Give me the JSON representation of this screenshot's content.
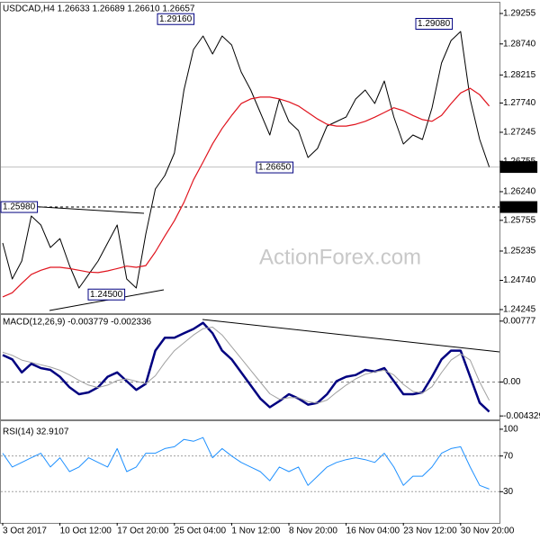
{
  "chart_data": [
    {
      "type": "line",
      "title": "USDCAD,H4 1.26633 1.26689 1.26610 1.26657",
      "watermark": "ActionForex.com",
      "ylim": [
        1.24184,
        1.29407
      ],
      "yticks": [
        1.29255,
        {
          "value": 1.2874,
          "label": "1.28740"
        },
        1.28215,
        {
          "value": 1.2774,
          "label": "1.27740"
        },
        1.27245,
        1.26755,
        {
          "value": 1.2624,
          "label": "1.26240"
        },
        1.25755,
        1.25235,
        {
          "value": 1.2474,
          "label": "1.24740"
        },
        1.24245
      ],
      "series": [
        {
          "color": "#000000",
          "width": 1,
          "values": [
            1.25371,
            1.24762,
            1.25067,
            1.25828,
            1.25676,
            1.25295,
            1.25447,
            1.24991,
            1.2461,
            1.24838,
            1.25067,
            1.25371,
            1.25676,
            1.24762,
            1.2461,
            1.25524,
            1.26285,
            1.26514,
            1.26894,
            1.2796,
            1.28646,
            1.28874,
            1.2857,
            1.28874,
            1.28722,
            1.28265,
            1.2796,
            1.2758,
            1.27199,
            1.27808,
            1.27427,
            1.27275,
            1.26818,
            1.2697,
            1.27351,
            1.27427,
            1.27504,
            1.27808,
            1.2796,
            1.27732,
            1.28113,
            1.27504,
            1.27047,
            1.27199,
            1.27123,
            1.27656,
            1.28417,
            1.28798,
            1.2895,
            1.27808,
            1.27123,
            1.26657
          ]
        },
        {
          "color": "#e0141e",
          "width": 1.2,
          "values": [
            1.2446,
            1.2453,
            1.2469,
            1.2484,
            1.2491,
            1.2496,
            1.2496,
            1.2494,
            1.2491,
            1.2488,
            1.2487,
            1.249,
            1.2494,
            1.2498,
            1.2496,
            1.2499,
            1.2522,
            1.2549,
            1.2575,
            1.2606,
            1.2644,
            1.2674,
            1.2705,
            1.2731,
            1.2753,
            1.2773,
            1.2781,
            1.2784,
            1.2784,
            1.2781,
            1.2776,
            1.2769,
            1.2758,
            1.2747,
            1.2738,
            1.2735,
            1.2735,
            1.2738,
            1.2743,
            1.275,
            1.2758,
            1.2766,
            1.2761,
            1.2753,
            1.2746,
            1.2743,
            1.2753,
            1.2773,
            1.2791,
            1.2799,
            1.2788,
            1.2769
          ]
        }
      ],
      "price_marker": 1.26657,
      "level_line": {
        "value": 1.2598,
        "label": "1.25980"
      },
      "annotations": [
        {
          "value": 1.2916,
          "label": "1.29160"
        },
        {
          "value": 1.2908,
          "label": "1.29080"
        },
        {
          "value": 1.2665,
          "label": "1.26650"
        },
        {
          "value": 1.245,
          "label": "1.24500"
        }
      ]
    },
    {
      "type": "line",
      "title": "MACD(12,26,9) -0.003779 -0.002336",
      "ylim": [
        -0.00477,
        0.00855
      ],
      "yticks": [
        0.00777,
        {
          "value": 0,
          "label": "0.00"
        },
        -0.004329
      ],
      "zero_line": true,
      "series": [
        {
          "color": "#000080",
          "width": 2.5,
          "values": [
            0.00344,
            0.00289,
            0.00122,
            0.00233,
            0.00178,
            0.00155,
            0.00067,
            -0.00067,
            -0.00155,
            -0.00133,
            -0.00067,
            0.00067,
            0.00122,
            0.00011,
            -0.001,
            -0.00022,
            0.004,
            0.00566,
            0.00566,
            0.00622,
            0.00677,
            0.00755,
            0.00622,
            0.004,
            0.00289,
            0.00122,
            -0.00044,
            -0.00211,
            -0.00322,
            -0.00244,
            -0.00155,
            -0.00211,
            -0.00289,
            -0.00266,
            -0.00155,
            0.00011,
            0.00067,
            0.00089,
            0.00155,
            0.00133,
            0.00178,
            0.00011,
            -0.00155,
            -0.00155,
            -0.00133,
            0.00067,
            0.00289,
            0.004,
            0.004,
            0.00067,
            -0.00266,
            -0.003779
          ]
        },
        {
          "color": "#a0a0a0",
          "width": 1,
          "values": [
            0.0038,
            0.0034,
            0.0028,
            0.0025,
            0.0022,
            0.0019,
            0.0015,
            0.0009,
            0.0002,
            -0.0004,
            -0.0007,
            -0.0004,
            0.0002,
            0.0004,
            0.0001,
            -0.0002,
            0.0008,
            0.0025,
            0.004,
            0.005,
            0.006,
            0.0068,
            0.007,
            0.006,
            0.0045,
            0.003,
            0.0015,
            0,
            -0.0015,
            -0.0022,
            -0.002,
            -0.002,
            -0.0025,
            -0.0027,
            -0.0023,
            -0.0013,
            -0.0004,
            0.0004,
            0.001,
            0.0013,
            0.0015,
            0.0009,
            -0.0003,
            -0.0012,
            -0.0014,
            -0.0006,
            0.0012,
            0.0028,
            0.0036,
            0.0028,
            0,
            -0.002336
          ]
        }
      ]
    },
    {
      "type": "line",
      "title": "RSI(14) 32.9107",
      "ylim": [
        -5,
        109
      ],
      "yticks": [
        100,
        70,
        30
      ],
      "dashed_ticks": [
        70,
        30
      ],
      "categories": [
        "3 Oct 2017",
        null,
        null,
        null,
        null,
        null,
        "10 Oct 12:00",
        null,
        null,
        null,
        null,
        null,
        "17 Oct 20:00",
        null,
        null,
        null,
        null,
        null,
        "25 Oct 04:00",
        null,
        null,
        null,
        null,
        null,
        "1 Nov 12:00",
        null,
        null,
        null,
        null,
        null,
        "8 Nov 20:00",
        null,
        null,
        null,
        null,
        null,
        "16 Nov 04:00",
        null,
        null,
        null,
        null,
        null,
        "23 Nov 12:00",
        null,
        null,
        null,
        null,
        null,
        "30 Nov 20:00",
        null,
        null,
        null
      ],
      "series": [
        {
          "color": "#1e90ff",
          "width": 1,
          "values": [
            73.1,
            57.7,
            62.8,
            68,
            73.1,
            57.7,
            68,
            52.5,
            57.7,
            68,
            62.8,
            57.7,
            78.3,
            52.5,
            57.7,
            73.1,
            73.1,
            78.3,
            80.3,
            88.6,
            86.5,
            90.6,
            68,
            78.3,
            70,
            62.8,
            57.7,
            52.5,
            42.2,
            57.7,
            52.5,
            57.7,
            37.1,
            47.4,
            57.7,
            62.8,
            65.9,
            68,
            65.9,
            62.8,
            73.1,
            57.7,
            37.1,
            47.4,
            47.4,
            57.7,
            73.1,
            78.3,
            80.3,
            57.7,
            37.1,
            32.9107
          ]
        }
      ]
    }
  ]
}
